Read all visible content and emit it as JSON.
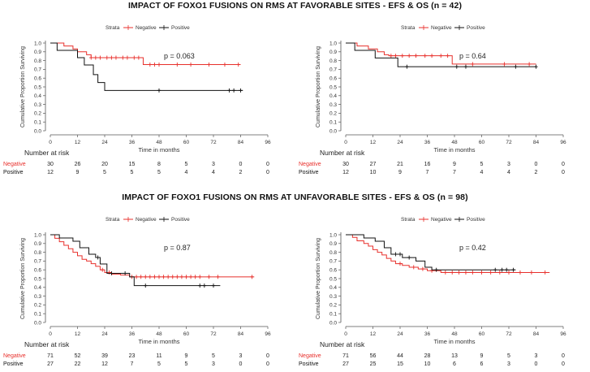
{
  "headings": {
    "favorable": "IMPACT OF FOXO1 FUSIONS ON RMS AT FAVORABLE SITES -  EFS & OS (n = 42)",
    "unfavorable": "IMPACT OF FOXO1 FUSIONS ON RMS AT UNFAVORABLE SITES -  EFS & OS (n = 98)"
  },
  "colors": {
    "negative": "#e8302c",
    "positive": "#111111"
  },
  "chart_data": [
    {
      "type": "line",
      "step": true,
      "legend_title": "Strata",
      "legend_position": "top",
      "pvalue": "p = 0.063",
      "ylabel": "Cumulative Proportion Surviving",
      "xlabel": "Time in months",
      "xlim": [
        0,
        96
      ],
      "ylim": [
        0,
        1
      ],
      "xticks": [
        0,
        12,
        24,
        36,
        48,
        60,
        72,
        84,
        96
      ],
      "yticks": [
        0.0,
        0.1,
        0.2,
        0.3,
        0.4,
        0.5,
        0.6,
        0.7,
        0.8,
        0.9,
        1.0
      ],
      "series": [
        {
          "name": "Negative",
          "steps": [
            [
              0,
              1
            ],
            [
              6,
              0.967
            ],
            [
              10,
              0.933
            ],
            [
              12,
              0.9
            ],
            [
              16,
              0.867
            ],
            [
              18,
              0.833
            ],
            [
              41,
              0.755
            ],
            [
              84,
              0.755
            ]
          ],
          "censors": [
            [
              18,
              0.833
            ],
            [
              20,
              0.833
            ],
            [
              22,
              0.833
            ],
            [
              25,
              0.833
            ],
            [
              27,
              0.833
            ],
            [
              29,
              0.833
            ],
            [
              32,
              0.833
            ],
            [
              34,
              0.833
            ],
            [
              37,
              0.833
            ],
            [
              39,
              0.833
            ],
            [
              44,
              0.755
            ],
            [
              46,
              0.755
            ],
            [
              48,
              0.755
            ],
            [
              56,
              0.755
            ],
            [
              62,
              0.755
            ],
            [
              70,
              0.755
            ],
            [
              77,
              0.755
            ],
            [
              83,
              0.755
            ]
          ]
        },
        {
          "name": "Positive",
          "steps": [
            [
              0,
              1
            ],
            [
              3,
              0.917
            ],
            [
              12,
              0.833
            ],
            [
              15,
              0.75
            ],
            [
              19,
              0.64
            ],
            [
              21,
              0.55
            ],
            [
              24,
              0.46
            ],
            [
              85,
              0.46
            ]
          ],
          "censors": [
            [
              48,
              0.46
            ],
            [
              79,
              0.46
            ],
            [
              81,
              0.46
            ],
            [
              84,
              0.46
            ]
          ]
        }
      ],
      "risk_table": {
        "title": "Number at risk",
        "times": [
          0,
          12,
          24,
          36,
          48,
          60,
          72,
          84,
          96
        ],
        "rows": [
          {
            "name": "Negative",
            "values": [
              30,
              26,
              20,
              15,
              8,
              5,
              3,
              0,
              0
            ]
          },
          {
            "name": "Positive",
            "values": [
              12,
              9,
              5,
              5,
              5,
              4,
              4,
              2,
              0
            ]
          }
        ]
      }
    },
    {
      "type": "line",
      "step": true,
      "legend_title": "Strata",
      "legend_position": "top",
      "pvalue": "p = 0.64",
      "ylabel": "Cumulative Proportion Surviving",
      "xlabel": "Time in months",
      "xlim": [
        0,
        96
      ],
      "ylim": [
        0,
        1
      ],
      "xticks": [
        0,
        12,
        24,
        36,
        48,
        60,
        72,
        84,
        96
      ],
      "yticks": [
        0.0,
        0.1,
        0.2,
        0.3,
        0.4,
        0.5,
        0.6,
        0.7,
        0.8,
        0.9,
        1.0
      ],
      "series": [
        {
          "name": "Negative",
          "steps": [
            [
              0,
              1
            ],
            [
              5,
              0.967
            ],
            [
              10,
              0.933
            ],
            [
              14,
              0.9
            ],
            [
              17,
              0.867
            ],
            [
              19,
              0.855
            ],
            [
              47,
              0.76
            ],
            [
              84,
              0.76
            ]
          ],
          "censors": [
            [
              20,
              0.855
            ],
            [
              22,
              0.855
            ],
            [
              25,
              0.855
            ],
            [
              28,
              0.855
            ],
            [
              31,
              0.855
            ],
            [
              35,
              0.855
            ],
            [
              38,
              0.855
            ],
            [
              42,
              0.855
            ],
            [
              45,
              0.855
            ],
            [
              56,
              0.76
            ],
            [
              70,
              0.76
            ],
            [
              81,
              0.76
            ]
          ]
        },
        {
          "name": "Positive",
          "steps": [
            [
              0,
              1
            ],
            [
              4,
              0.917
            ],
            [
              13,
              0.83
            ],
            [
              23,
              0.73
            ],
            [
              84,
              0.73
            ]
          ],
          "censors": [
            [
              27,
              0.73
            ],
            [
              49,
              0.73
            ],
            [
              53,
              0.73
            ],
            [
              75,
              0.73
            ],
            [
              84,
              0.73
            ]
          ]
        }
      ],
      "risk_table": {
        "title": "Number at risk",
        "times": [
          0,
          12,
          24,
          36,
          48,
          60,
          72,
          84,
          96
        ],
        "rows": [
          {
            "name": "Negative",
            "values": [
              30,
              27,
              21,
              16,
              9,
              5,
              3,
              0,
              0
            ]
          },
          {
            "name": "Positive",
            "values": [
              12,
              10,
              9,
              7,
              7,
              4,
              4,
              2,
              0
            ]
          }
        ]
      }
    },
    {
      "type": "line",
      "step": true,
      "legend_title": "Strata",
      "legend_position": "top",
      "pvalue": "p = 0.87",
      "ylabel": "Cumulative Proportion Surviving",
      "xlabel": "Time in months",
      "xlim": [
        0,
        96
      ],
      "ylim": [
        0,
        1
      ],
      "xticks": [
        0,
        12,
        24,
        36,
        48,
        60,
        72,
        84,
        96
      ],
      "yticks": [
        0.0,
        0.1,
        0.2,
        0.3,
        0.4,
        0.5,
        0.6,
        0.7,
        0.8,
        0.9,
        1.0
      ],
      "series": [
        {
          "name": "Negative",
          "steps": [
            [
              0,
              1
            ],
            [
              2,
              0.96
            ],
            [
              4,
              0.92
            ],
            [
              6,
              0.88
            ],
            [
              8,
              0.84
            ],
            [
              10,
              0.8
            ],
            [
              12,
              0.76
            ],
            [
              14,
              0.72
            ],
            [
              16,
              0.7
            ],
            [
              18,
              0.67
            ],
            [
              20,
              0.64
            ],
            [
              22,
              0.6
            ],
            [
              24,
              0.57
            ],
            [
              27,
              0.55
            ],
            [
              31,
              0.54
            ],
            [
              35,
              0.52
            ],
            [
              90,
              0.52
            ]
          ],
          "censors": [
            [
              23,
              0.6
            ],
            [
              26,
              0.57
            ],
            [
              36,
              0.52
            ],
            [
              38,
              0.52
            ],
            [
              40,
              0.52
            ],
            [
              42,
              0.52
            ],
            [
              44,
              0.52
            ],
            [
              46,
              0.52
            ],
            [
              48,
              0.52
            ],
            [
              50,
              0.52
            ],
            [
              52,
              0.52
            ],
            [
              54,
              0.52
            ],
            [
              56,
              0.52
            ],
            [
              58,
              0.52
            ],
            [
              60,
              0.52
            ],
            [
              62,
              0.52
            ],
            [
              64,
              0.52
            ],
            [
              66,
              0.52
            ],
            [
              70,
              0.52
            ],
            [
              74,
              0.52
            ],
            [
              89,
              0.52
            ]
          ]
        },
        {
          "name": "Positive",
          "steps": [
            [
              0,
              1
            ],
            [
              4,
              0.963
            ],
            [
              10,
              0.926
            ],
            [
              13,
              0.852
            ],
            [
              17,
              0.778
            ],
            [
              20,
              0.741
            ],
            [
              22,
              0.667
            ],
            [
              25,
              0.56
            ],
            [
              35,
              0.52
            ],
            [
              37,
              0.42
            ],
            [
              75,
              0.42
            ]
          ],
          "censors": [
            [
              21,
              0.741
            ],
            [
              27,
              0.56
            ],
            [
              33,
              0.56
            ],
            [
              42,
              0.42
            ],
            [
              66,
              0.42
            ],
            [
              68,
              0.42
            ],
            [
              72,
              0.42
            ]
          ]
        }
      ],
      "risk_table": {
        "title": "Number at risk",
        "times": [
          0,
          12,
          24,
          36,
          48,
          60,
          72,
          84,
          96
        ],
        "rows": [
          {
            "name": "Negative",
            "values": [
              71,
              52,
              39,
              23,
              11,
              9,
              5,
              3,
              0
            ]
          },
          {
            "name": "Positive",
            "values": [
              27,
              22,
              12,
              7,
              5,
              5,
              3,
              0,
              0
            ]
          }
        ]
      }
    },
    {
      "type": "line",
      "step": true,
      "legend_title": "Strata",
      "legend_position": "top",
      "pvalue": "p = 0.42",
      "ylabel": "Cumulative Proportion Surviving",
      "xlabel": "Time in months",
      "xlim": [
        0,
        96
      ],
      "ylim": [
        0,
        1
      ],
      "xticks": [
        0,
        12,
        24,
        36,
        48,
        60,
        72,
        84,
        96
      ],
      "yticks": [
        0.0,
        0.1,
        0.2,
        0.3,
        0.4,
        0.5,
        0.6,
        0.7,
        0.8,
        0.9,
        1.0
      ],
      "series": [
        {
          "name": "Negative",
          "steps": [
            [
              0,
              1
            ],
            [
              3,
              0.97
            ],
            [
              5,
              0.93
            ],
            [
              8,
              0.9
            ],
            [
              10,
              0.87
            ],
            [
              12,
              0.83
            ],
            [
              14,
              0.8
            ],
            [
              16,
              0.77
            ],
            [
              18,
              0.73
            ],
            [
              20,
              0.7
            ],
            [
              22,
              0.67
            ],
            [
              25,
              0.65
            ],
            [
              28,
              0.63
            ],
            [
              32,
              0.61
            ],
            [
              36,
              0.59
            ],
            [
              42,
              0.57
            ],
            [
              90,
              0.57
            ]
          ],
          "censors": [
            [
              24,
              0.67
            ],
            [
              30,
              0.63
            ],
            [
              34,
              0.61
            ],
            [
              38,
              0.59
            ],
            [
              44,
              0.57
            ],
            [
              47,
              0.57
            ],
            [
              50,
              0.57
            ],
            [
              53,
              0.57
            ],
            [
              56,
              0.57
            ],
            [
              60,
              0.57
            ],
            [
              64,
              0.57
            ],
            [
              68,
              0.57
            ],
            [
              72,
              0.57
            ],
            [
              77,
              0.57
            ],
            [
              82,
              0.57
            ],
            [
              88,
              0.57
            ]
          ]
        },
        {
          "name": "Positive",
          "steps": [
            [
              0,
              1
            ],
            [
              8,
              0.963
            ],
            [
              13,
              0.926
            ],
            [
              17,
              0.852
            ],
            [
              20,
              0.778
            ],
            [
              25,
              0.74
            ],
            [
              31,
              0.7
            ],
            [
              35,
              0.63
            ],
            [
              38,
              0.6
            ],
            [
              75,
              0.6
            ]
          ],
          "censors": [
            [
              22,
              0.778
            ],
            [
              24,
              0.778
            ],
            [
              28,
              0.74
            ],
            [
              40,
              0.6
            ],
            [
              66,
              0.6
            ],
            [
              69,
              0.6
            ],
            [
              71,
              0.6
            ],
            [
              74,
              0.6
            ]
          ]
        }
      ],
      "risk_table": {
        "title": "Number at risk",
        "times": [
          0,
          12,
          24,
          36,
          48,
          60,
          72,
          84,
          96
        ],
        "rows": [
          {
            "name": "Negative",
            "values": [
              71,
              56,
              44,
              28,
              13,
              9,
              5,
              3,
              0
            ]
          },
          {
            "name": "Positive",
            "values": [
              27,
              25,
              15,
              10,
              6,
              6,
              3,
              0,
              0
            ]
          }
        ]
      }
    }
  ]
}
